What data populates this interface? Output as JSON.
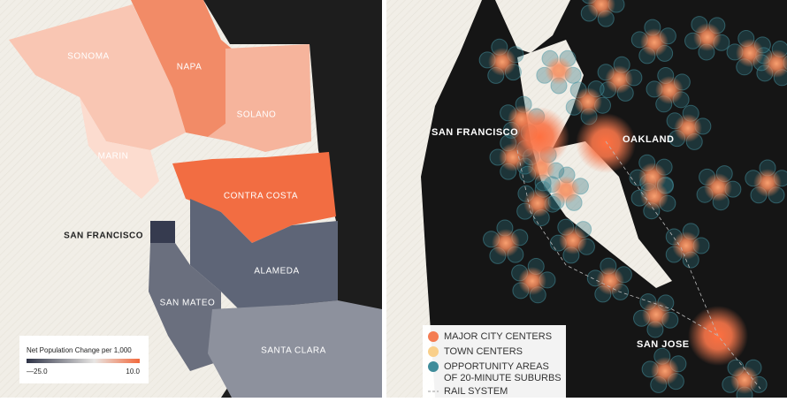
{
  "left_map": {
    "counties": [
      "SONOMA",
      "NAPA",
      "SOLANO",
      "MARIN",
      "CONTRA COSTA",
      "SAN FRANCISCO",
      "ALAMEDA",
      "SAN MATEO",
      "SANTA CLARA"
    ],
    "legend": {
      "title": "Net Population Change per 1,000",
      "min": "—25.0",
      "max": "10.0"
    }
  },
  "right_map": {
    "cities": [
      "SAN FRANCISCO",
      "OAKLAND",
      "SAN JOSE"
    ],
    "legend": [
      "MAJOR CITY CENTERS",
      "TOWN CENTERS",
      "OPPORTUNITY AREAS",
      "OF 20-MINUTE SUBURBS",
      "RAIL SYSTEM"
    ]
  }
}
